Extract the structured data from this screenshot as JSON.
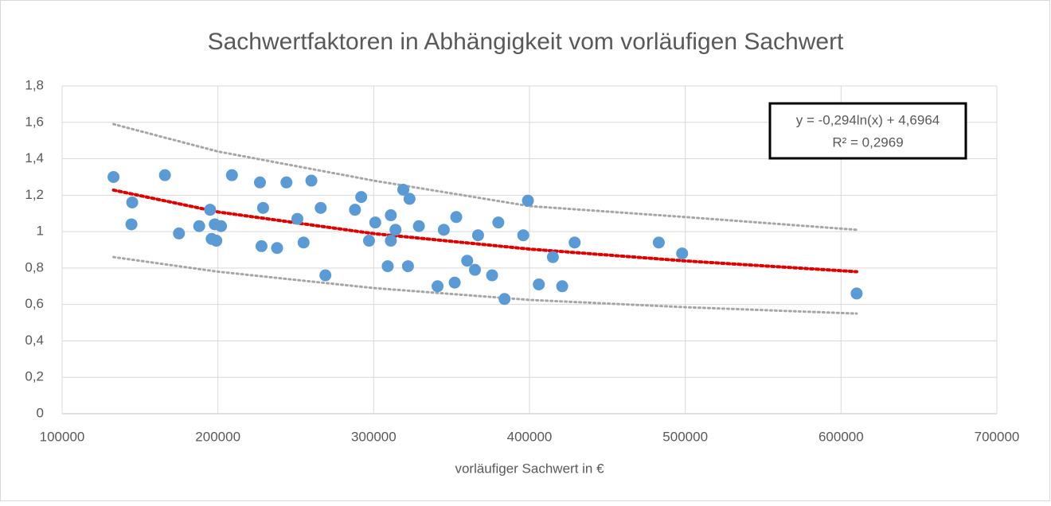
{
  "chart_data": {
    "type": "scatter",
    "title": "Sachwertfaktoren in Abhängigkeit vom vorläufigen Sachwert",
    "xlabel": "vorläufiger Sachwert in €",
    "xlim": [
      100000,
      700000
    ],
    "xticks": [
      100000,
      200000,
      300000,
      400000,
      500000,
      600000,
      700000
    ],
    "ylim": [
      0,
      1.8
    ],
    "yticks": [
      0,
      {
        "value": 0.2,
        "label": "0,2"
      },
      {
        "value": 0.4,
        "label": "0,4"
      },
      {
        "value": 0.6,
        "label": "0,6"
      },
      {
        "value": 0.8,
        "label": "0,8"
      },
      1,
      {
        "value": 1.2,
        "label": "1,2"
      },
      {
        "value": 1.4,
        "label": "1,4"
      },
      {
        "value": 1.6,
        "label": "1,6"
      },
      {
        "value": 1.8,
        "label": "1,8"
      }
    ],
    "grid": true,
    "series": [
      {
        "color": "#5b9bd5",
        "x": [
          133000,
          145000,
          144500,
          166000,
          175000,
          188000,
          195000,
          196000,
          198000,
          199000,
          202000,
          209000,
          227000,
          229000,
          228000,
          238000,
          244000,
          251000,
          255000,
          260000,
          266000,
          269000,
          288000,
          292000,
          297000,
          301000,
          309000,
          311000,
          311000,
          314000,
          319000,
          323000,
          322000,
          329000,
          341000,
          345000,
          353000,
          352000,
          360000,
          365000,
          367000,
          376000,
          380000,
          384000,
          396000,
          399000,
          406000,
          415000,
          421000,
          429000,
          483000,
          498000,
          610000
        ],
        "values": [
          1.3,
          1.16,
          1.04,
          1.31,
          0.99,
          1.03,
          1.12,
          0.96,
          1.04,
          0.95,
          1.03,
          1.31,
          1.27,
          1.13,
          0.92,
          0.91,
          1.27,
          1.07,
          0.94,
          1.28,
          1.13,
          0.76,
          1.12,
          1.19,
          0.95,
          1.05,
          0.81,
          1.09,
          0.95,
          1.01,
          1.23,
          1.18,
          0.81,
          1.03,
          0.7,
          1.01,
          1.08,
          0.72,
          0.84,
          0.79,
          0.98,
          0.76,
          1.05,
          0.63,
          0.98,
          1.17,
          0.71,
          0.86,
          0.7,
          0.94,
          0.94,
          0.88,
          0.66
        ]
      }
    ],
    "trendlines": [
      {
        "color": "#e00000",
        "x": [
          133000,
          200000,
          300000,
          400000,
          500000,
          610000
        ],
        "values": [
          1.228,
          1.108,
          0.989,
          0.904,
          0.839,
          0.78
        ]
      },
      {
        "color": "#a6a6a6",
        "x": [
          133000,
          200000,
          300000,
          400000,
          500000,
          610000
        ],
        "values": [
          1.59,
          1.44,
          1.28,
          1.14,
          1.08,
          1.01
        ]
      },
      {
        "color": "#a6a6a6",
        "x": [
          133000,
          200000,
          300000,
          400000,
          500000,
          610000
        ],
        "values": [
          0.86,
          0.78,
          0.69,
          0.625,
          0.585,
          0.55
        ]
      }
    ],
    "equation": "y = -0,294ln(x) + 4,6964",
    "r_squared": "R² = 0,2969"
  }
}
